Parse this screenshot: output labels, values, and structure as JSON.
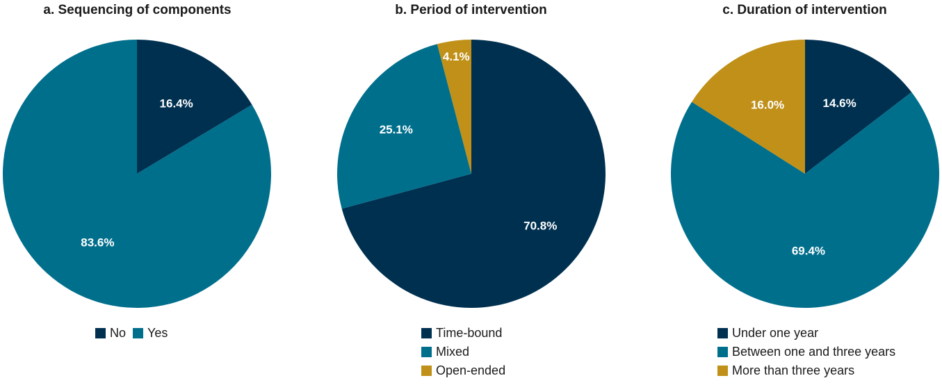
{
  "colors": {
    "dark_navy": "#003050",
    "teal": "#006F8C",
    "gold": "#C09018"
  },
  "chart_data": [
    {
      "type": "pie",
      "title": "a. Sequencing of components",
      "slices": [
        {
          "label": "No",
          "value": 16.4,
          "display": "16.4%",
          "color": "#003050"
        },
        {
          "label": "Yes",
          "value": 83.6,
          "display": "83.6%",
          "color": "#006F8C"
        }
      ],
      "legend": {
        "placement": "bottom",
        "orientation": "horizontal"
      }
    },
    {
      "type": "pie",
      "title": "b. Period of intervention",
      "slices": [
        {
          "label": "Time-bound",
          "value": 70.8,
          "display": "70.8%",
          "color": "#003050"
        },
        {
          "label": "Mixed",
          "value": 25.1,
          "display": "25.1%",
          "color": "#006F8C"
        },
        {
          "label": "Open-ended",
          "value": 4.1,
          "display": "4.1%",
          "color": "#C09018"
        }
      ],
      "legend": {
        "placement": "bottom",
        "orientation": "vertical"
      }
    },
    {
      "type": "pie",
      "title": "c. Duration of intervention",
      "slices": [
        {
          "label": "Under one year",
          "value": 14.6,
          "display": "14.6%",
          "color": "#003050"
        },
        {
          "label": "Between one and three years",
          "value": 69.4,
          "display": "69.4%",
          "color": "#006F8C"
        },
        {
          "label": "More than three years",
          "value": 16.0,
          "display": "16.0%",
          "color": "#C09018"
        }
      ],
      "legend": {
        "placement": "bottom",
        "orientation": "vertical"
      }
    }
  ]
}
